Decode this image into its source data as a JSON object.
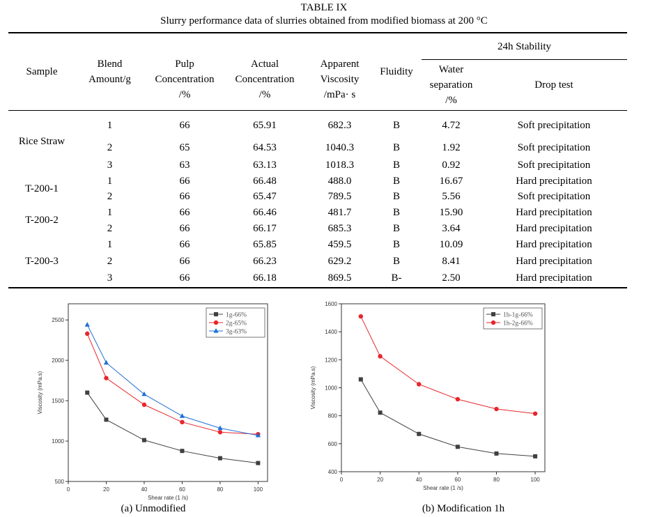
{
  "table": {
    "title": "TABLE IX",
    "subtitle": "Slurry performance data of slurries obtained from modified biomass at 200 °C",
    "headers": {
      "sample": "Sample",
      "blend": [
        "Blend",
        "Amount/g"
      ],
      "pulp": [
        "Pulp",
        "Concentration",
        "/%"
      ],
      "actual": [
        "Actual",
        "Concentration",
        "/%"
      ],
      "viscosity": [
        "Apparent",
        "Viscosity",
        "/mPa· s"
      ],
      "fluidity": "Fluidity",
      "stability": "24h Stability",
      "water": [
        "Water",
        "separation",
        "/%"
      ],
      "drop": "Drop test"
    },
    "groups": [
      "Rice Straw",
      "T-200-1",
      "T-200-2",
      "T-200-3"
    ],
    "rows": [
      [
        "1",
        "66",
        "65.91",
        "682.3",
        "B",
        "4.72",
        "Soft precipitation"
      ],
      [
        "2",
        "65",
        "64.53",
        "1040.3",
        "B",
        "1.92",
        "Soft precipitation"
      ],
      [
        "3",
        "63",
        "63.13",
        "1018.3",
        "B",
        "0.92",
        "Soft precipitation"
      ],
      [
        "1",
        "66",
        "66.48",
        "488.0",
        "B",
        "16.67",
        "Hard precipitation"
      ],
      [
        "2",
        "66",
        "65.47",
        "789.5",
        "B",
        "5.56",
        "Soft precipitation"
      ],
      [
        "1",
        "66",
        "66.46",
        "481.7",
        "B",
        "15.90",
        "Hard precipitation"
      ],
      [
        "2",
        "66",
        "66.17",
        "685.3",
        "B",
        "3.64",
        "Hard precipitation"
      ],
      [
        "1",
        "66",
        "65.85",
        "459.5",
        "B",
        "10.09",
        "Hard precipitation"
      ],
      [
        "2",
        "66",
        "66.23",
        "629.2",
        "B",
        "8.41",
        "Hard precipitation"
      ],
      [
        "3",
        "66",
        "66.18",
        "869.5",
        "B-",
        "2.50",
        "Hard precipitation"
      ]
    ]
  },
  "chart_data": [
    {
      "type": "line",
      "caption": "(a) Unmodified",
      "xlabel": "Shear rate (1 /s)",
      "ylabel": "Viscosity (mPa.s)",
      "xlim": [
        0,
        105
      ],
      "ylim": [
        500,
        2700
      ],
      "xticks": [
        0,
        20,
        40,
        60,
        80,
        100
      ],
      "yticks": [
        500,
        1000,
        1500,
        2000,
        2500
      ],
      "legend": "top-right",
      "series": [
        {
          "name": "1g-66%",
          "color": "#404040",
          "marker": "square",
          "x": [
            10,
            20,
            40,
            60,
            80,
            100
          ],
          "y": [
            1600,
            1265,
            1012,
            878,
            788,
            728
          ]
        },
        {
          "name": "2g-65%",
          "color": "#e8262b",
          "marker": "circle",
          "x": [
            10,
            20,
            40,
            60,
            80,
            100
          ],
          "y": [
            2330,
            1780,
            1450,
            1235,
            1110,
            1085
          ]
        },
        {
          "name": "3g-63%",
          "color": "#1f6fd6",
          "marker": "triangle",
          "x": [
            10,
            20,
            40,
            60,
            80,
            100
          ],
          "y": [
            2440,
            1970,
            1580,
            1310,
            1160,
            1070
          ]
        }
      ]
    },
    {
      "type": "line",
      "caption": "(b) Modification 1h",
      "xlabel": "Shear rate (1 /s)",
      "ylabel": "Viscosity (mPa.s)",
      "xlim": [
        0,
        105
      ],
      "ylim": [
        400,
        1600
      ],
      "xticks": [
        0,
        20,
        40,
        60,
        80,
        100
      ],
      "yticks": [
        400,
        600,
        800,
        1000,
        1200,
        1400,
        1600
      ],
      "legend": "top-right",
      "series": [
        {
          "name": "1h-1g-66%",
          "color": "#404040",
          "marker": "square",
          "x": [
            10,
            20,
            40,
            60,
            80,
            100
          ],
          "y": [
            1060,
            822,
            670,
            578,
            530,
            510
          ]
        },
        {
          "name": "1h-2g-66%",
          "color": "#e8262b",
          "marker": "circle",
          "x": [
            10,
            20,
            40,
            60,
            80,
            100
          ],
          "y": [
            1510,
            1225,
            1025,
            918,
            848,
            815
          ]
        }
      ]
    }
  ]
}
